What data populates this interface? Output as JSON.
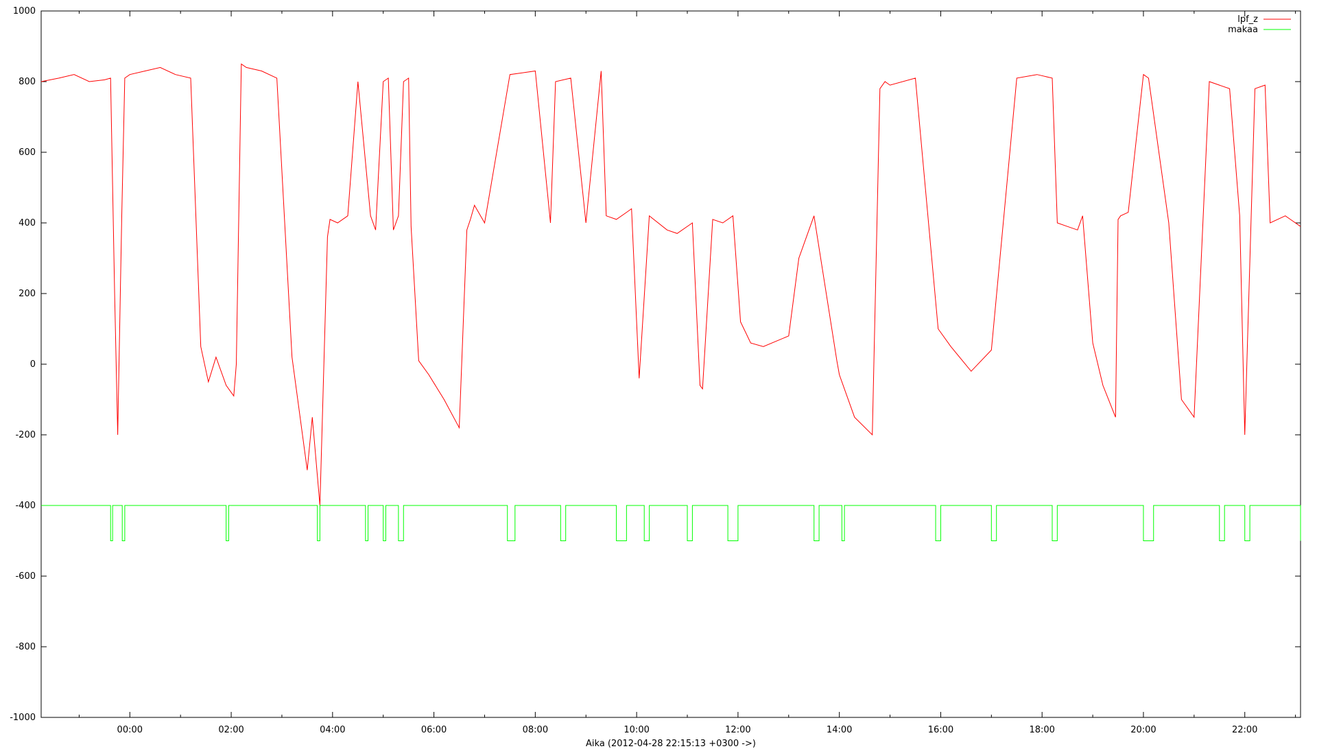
{
  "chart_data": {
    "type": "line",
    "title": "",
    "xlabel": "Aika (2012-04-28 22:15:13 +0300 ->)",
    "ylabel": "",
    "ylim": [
      -1000,
      1000
    ],
    "xlim_hours": [
      22.25,
      47.1
    ],
    "grid": false,
    "legend_position": "top-right",
    "y_ticks": [
      "1000",
      "800",
      "600",
      "400",
      "200",
      "0",
      "-200",
      "-400",
      "-600",
      "-800",
      "-1000"
    ],
    "x_ticks": [
      "00:00",
      "02:00",
      "04:00",
      "06:00",
      "08:00",
      "10:00",
      "12:00",
      "14:00",
      "16:00",
      "18:00",
      "20:00",
      "22:00",
      "00:00",
      "02:00",
      "04:00",
      "06:00",
      "08:00",
      "10:00",
      "12:00",
      "14:00",
      "16:00",
      "18:00",
      "20:00",
      "22:00",
      "00:00"
    ],
    "series": [
      {
        "name": "lpf_z",
        "color": "#ff0000",
        "x": [
          22.25,
          22.6,
          22.9,
          23.2,
          23.5,
          23.62,
          23.7,
          23.76,
          23.84,
          23.9,
          24.0,
          24.3,
          24.6,
          24.9,
          25.2,
          25.4,
          25.55,
          25.7,
          25.9,
          26.05,
          26.1,
          26.2,
          26.3,
          26.6,
          26.9,
          27.2,
          27.5,
          27.6,
          27.75,
          27.9,
          27.95,
          28.1,
          28.3,
          28.5,
          28.75,
          28.85,
          29.0,
          29.1,
          29.2,
          29.3,
          29.4,
          29.5,
          29.55,
          29.7,
          29.9,
          30.2,
          30.5,
          30.65,
          30.72,
          30.8,
          31.0,
          31.5,
          32.0,
          32.3,
          32.4,
          32.7,
          33.0,
          33.3,
          33.4,
          33.6,
          33.8,
          33.9,
          34.05,
          34.25,
          34.6,
          34.8,
          35.1,
          35.25,
          35.3,
          35.5,
          35.7,
          35.9,
          36.05,
          36.25,
          36.5,
          37.0,
          37.2,
          37.5,
          37.95,
          38.0,
          38.3,
          38.65,
          38.8,
          38.9,
          39.0,
          39.5,
          39.95,
          40.2,
          40.6,
          41.0,
          41.5,
          41.9,
          42.2,
          42.3,
          42.5,
          42.7,
          42.8,
          43.0,
          43.2,
          43.45,
          43.5,
          43.55,
          43.7,
          44.0,
          44.1,
          44.5,
          44.75,
          45.0,
          45.3,
          45.7,
          45.9,
          46.0,
          46.2,
          46.4,
          46.5,
          46.8,
          46.9,
          47.1
        ],
        "y": [
          800,
          810,
          820,
          800,
          805,
          810,
          200,
          -200,
          420,
          810,
          820,
          830,
          840,
          820,
          810,
          50,
          -50,
          20,
          -60,
          -90,
          0,
          850,
          840,
          830,
          810,
          20,
          -300,
          -150,
          -400,
          360,
          410,
          400,
          420,
          800,
          420,
          380,
          800,
          810,
          380,
          420,
          800,
          810,
          390,
          10,
          -30,
          -100,
          -180,
          380,
          410,
          450,
          400,
          820,
          830,
          400,
          800,
          810,
          400,
          830,
          420,
          410,
          430,
          440,
          -40,
          420,
          380,
          370,
          400,
          -60,
          -70,
          410,
          400,
          420,
          120,
          60,
          50,
          80,
          300,
          420,
          10,
          -30,
          -150,
          -200,
          780,
          800,
          790,
          810,
          100,
          50,
          -20,
          40,
          810,
          820,
          810,
          400,
          390,
          380,
          420,
          60,
          -60,
          -150,
          410,
          420,
          430,
          820,
          810,
          400,
          -100,
          -150,
          800,
          780,
          420,
          -200,
          780,
          790,
          400,
          420,
          410,
          390
        ]
      },
      {
        "name": "makaa",
        "color": "#00ff00",
        "x": [
          22.25,
          22.75,
          23.62,
          23.66,
          23.85,
          23.9,
          25.9,
          25.95,
          27.7,
          27.75,
          28.65,
          28.7,
          29.0,
          29.05,
          29.3,
          29.4,
          31.45,
          31.6,
          32.5,
          32.6,
          33.6,
          33.8,
          34.15,
          34.25,
          35.0,
          35.1,
          35.8,
          36.0,
          37.5,
          37.6,
          38.05,
          38.1,
          39.9,
          40.0,
          41.0,
          41.1,
          42.2,
          42.3,
          44.0,
          44.2,
          45.5,
          45.6,
          46.0,
          46.1,
          47.1
        ],
        "y": [
          -400,
          -400,
          -500,
          -400,
          -500,
          -400,
          -500,
          -400,
          -500,
          -400,
          -500,
          -400,
          -500,
          -400,
          -500,
          -400,
          -500,
          -400,
          -500,
          -400,
          -500,
          -400,
          -500,
          -400,
          -500,
          -400,
          -500,
          -400,
          -500,
          -400,
          -500,
          -400,
          -500,
          -400,
          -500,
          -400,
          -500,
          -400,
          -500,
          -400,
          -500,
          -400,
          -500,
          -400,
          -500
        ]
      }
    ]
  }
}
